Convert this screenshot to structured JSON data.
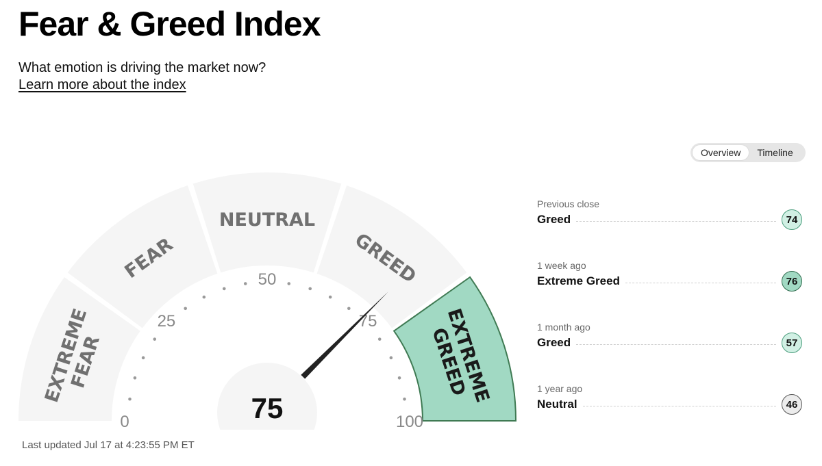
{
  "page": {
    "title": "Fear & Greed Index",
    "subtitle": "What emotion is driving the market now?",
    "learn_link": "Learn more about the index",
    "last_updated": "Last updated Jul 17 at 4:23:55 PM ET"
  },
  "tabs": {
    "overview": "Overview",
    "timeline": "Timeline",
    "selected": "Overview"
  },
  "gauge": {
    "value": 75,
    "value_label": "75",
    "segments": [
      {
        "label_lines": [
          "EXTREME",
          "FEAR"
        ],
        "active": false
      },
      {
        "label_lines": [
          "FEAR"
        ],
        "active": false
      },
      {
        "label_lines": [
          "NEUTRAL"
        ],
        "active": false
      },
      {
        "label_lines": [
          "GREED"
        ],
        "active": false
      },
      {
        "label_lines": [
          "EXTREME",
          "GREED"
        ],
        "active": true
      }
    ],
    "scale_labels": [
      "0",
      "25",
      "50",
      "75",
      "100"
    ],
    "colors": {
      "inactive": "#f5f5f5",
      "active": "#a1d9c3",
      "active_border": "#3f7a53",
      "label": "#707070",
      "needle": "#222222"
    }
  },
  "history": [
    {
      "period": "Previous close",
      "status": "Greed",
      "value": "74",
      "badge_color": "#d1f0e4",
      "border_color": "#4a9c7c"
    },
    {
      "period": "1 week ago",
      "status": "Extreme Greed",
      "value": "76",
      "badge_color": "#a1d9c3",
      "border_color": "#2f6b4d"
    },
    {
      "period": "1 month ago",
      "status": "Greed",
      "value": "57",
      "badge_color": "#d1f0e4",
      "border_color": "#4a9c7c"
    },
    {
      "period": "1 year ago",
      "status": "Neutral",
      "value": "46",
      "badge_color": "#ececec",
      "border_color": "#555555"
    }
  ]
}
